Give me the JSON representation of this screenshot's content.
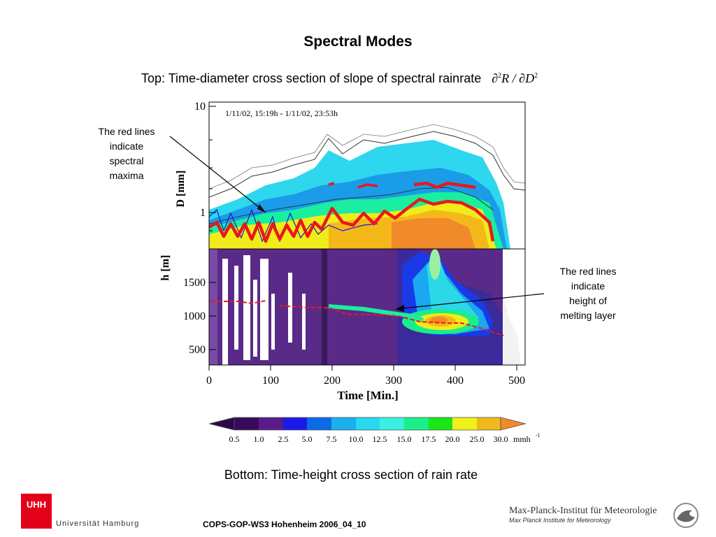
{
  "title": "Spectral Modes",
  "subtitle": "Top: Time-diameter cross section of slope of spectral rainrate",
  "formula": {
    "partial": "∂",
    "exp": "2",
    "R": "R",
    "slash": " / ",
    "D": "D"
  },
  "annotations": {
    "left": [
      "The red lines",
      "indicate",
      "spectral",
      "maxima"
    ],
    "right": [
      "The red lines",
      "indicate",
      "height of",
      "melting layer"
    ]
  },
  "top_panel": {
    "date_range": "1/11/02, 15:19h -  1/11/02, 23:53h",
    "ylabel": "D [mm]",
    "y_ticks": [
      "10",
      "1"
    ]
  },
  "bottom_panel": {
    "ylabel": "h [m]",
    "y_ticks": [
      "1500",
      "1000",
      "500"
    ],
    "xlabel": "Time [Min.]",
    "x_ticks": [
      "0",
      "100",
      "200",
      "300",
      "400",
      "500"
    ]
  },
  "colorbar": {
    "levels": [
      "0.5",
      "1.0",
      "2.5",
      "5.0",
      "7.5",
      "10.0",
      "12.5",
      "15.0",
      "17.5",
      "20.0",
      "25.0",
      "30.0"
    ],
    "unit": "mmh",
    "unit_exp": "-1",
    "colors": [
      "#3a0a5a",
      "#5a1a8a",
      "#1a1ae8",
      "#0a6ae8",
      "#1ab0f0",
      "#28d8f0",
      "#3af0e0",
      "#1af08a",
      "#1ae61a",
      "#f0f01a",
      "#f0b81a",
      "#f08a2a"
    ]
  },
  "bottom_caption": "Bottom: Time-height cross section of rain rate",
  "footer": "COPS-GOP-WS3 Hohenheim 2006_04_10",
  "logos": {
    "uhh_mark": "UHH",
    "uhh_name": "Universität Hamburg",
    "mpi_name": "Max-Planck-Institut für Meteorologie",
    "mpi_sub": "Max Planck Institute for Meteorology"
  }
}
